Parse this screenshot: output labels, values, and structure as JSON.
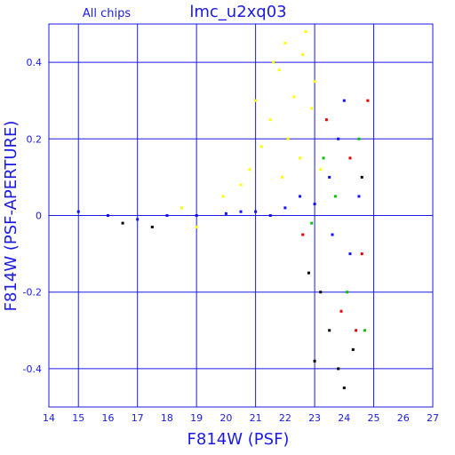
{
  "chart_data": {
    "type": "scatter",
    "subtitle": "All chips",
    "title": "lmc_u2xq03",
    "xlabel": "F814W (PSF)",
    "ylabel": "F814W (PSF-APERTURE)",
    "xlim": [
      14,
      27
    ],
    "ylim": [
      -0.5,
      0.5
    ],
    "xticks": [
      "14",
      "15",
      "16",
      "17",
      "18",
      "19",
      "20",
      "21",
      "22",
      "23",
      "24",
      "25",
      "26",
      "27"
    ],
    "yticks": [
      "0.4",
      "0.2",
      "0",
      "-0.2",
      "-0.4"
    ],
    "grid": true,
    "colors": {
      "axis": "#1a1ae6",
      "blue": "#1010ff",
      "yellow": "#ffff00",
      "red": "#e00000",
      "green": "#00c000",
      "black": "#000000"
    },
    "series": [
      {
        "color_key": "yellow",
        "values": [
          [
            22.0,
            0.45
          ],
          [
            21.8,
            0.38
          ],
          [
            22.3,
            0.31
          ],
          [
            22.6,
            0.42
          ],
          [
            21.5,
            0.25
          ],
          [
            22.9,
            0.28
          ],
          [
            21.2,
            0.18
          ],
          [
            20.8,
            0.12
          ],
          [
            22.1,
            0.2
          ],
          [
            23.0,
            0.35
          ],
          [
            21.9,
            0.1
          ],
          [
            20.5,
            0.08
          ],
          [
            22.5,
            0.15
          ],
          [
            19.9,
            0.05
          ],
          [
            21.0,
            0.3
          ],
          [
            22.7,
            0.48
          ],
          [
            18.5,
            0.02
          ],
          [
            19.0,
            -0.03
          ],
          [
            23.2,
            0.12
          ],
          [
            21.6,
            0.4
          ]
        ]
      },
      {
        "color_key": "blue",
        "values": [
          [
            15.0,
            0.01
          ],
          [
            16.0,
            0.0
          ],
          [
            17.0,
            -0.01
          ],
          [
            18.0,
            0.0
          ],
          [
            19.0,
            0.0
          ],
          [
            20.0,
            0.005
          ],
          [
            21.0,
            0.01
          ],
          [
            22.0,
            0.02
          ],
          [
            23.0,
            0.03
          ],
          [
            23.5,
            0.1
          ],
          [
            23.8,
            0.2
          ],
          [
            24.0,
            0.3
          ],
          [
            24.2,
            -0.1
          ],
          [
            23.6,
            -0.05
          ],
          [
            24.5,
            0.05
          ],
          [
            22.5,
            0.05
          ],
          [
            21.5,
            0.0
          ],
          [
            20.5,
            0.01
          ]
        ]
      },
      {
        "color_key": "black",
        "values": [
          [
            23.5,
            -0.3
          ],
          [
            23.8,
            -0.4
          ],
          [
            24.0,
            -0.45
          ],
          [
            23.2,
            -0.2
          ],
          [
            22.8,
            -0.15
          ],
          [
            24.3,
            -0.35
          ],
          [
            23.0,
            -0.38
          ],
          [
            16.5,
            -0.02
          ],
          [
            17.5,
            -0.03
          ],
          [
            24.6,
            0.1
          ]
        ]
      },
      {
        "color_key": "red",
        "values": [
          [
            23.9,
            -0.25
          ],
          [
            24.2,
            0.15
          ],
          [
            24.6,
            -0.1
          ],
          [
            23.4,
            0.25
          ],
          [
            24.8,
            0.3
          ],
          [
            22.6,
            -0.05
          ],
          [
            24.4,
            -0.3
          ]
        ]
      },
      {
        "color_key": "green",
        "values": [
          [
            24.1,
            -0.2
          ],
          [
            23.7,
            0.05
          ],
          [
            24.5,
            0.2
          ],
          [
            22.9,
            -0.02
          ],
          [
            24.7,
            -0.3
          ],
          [
            23.3,
            0.15
          ]
        ]
      }
    ]
  }
}
